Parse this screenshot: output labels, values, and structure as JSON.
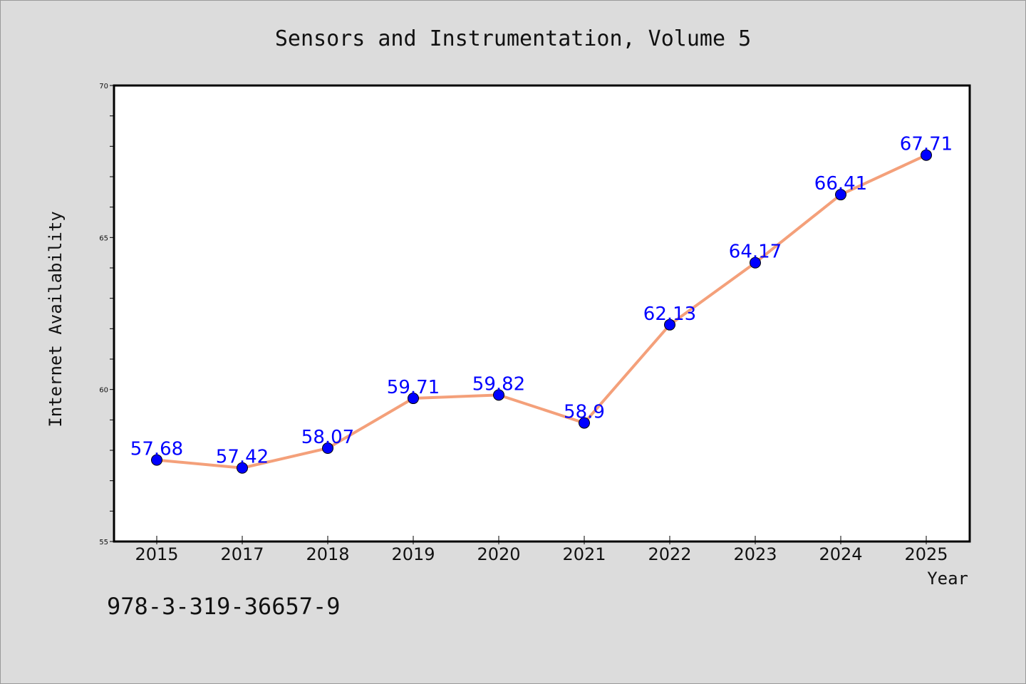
{
  "chart_data": {
    "type": "line",
    "title": "Sensors and Instrumentation, Volume 5",
    "xlabel": "Year",
    "ylabel": "Internet Availability",
    "categories": [
      "2015",
      "2017",
      "2018",
      "2019",
      "2020",
      "2021",
      "2022",
      "2023",
      "2024",
      "2025"
    ],
    "series": [
      {
        "values": [
          57.68,
          57.42,
          58.07,
          59.71,
          59.82,
          58.9,
          62.13,
          64.17,
          66.41,
          67.71
        ],
        "data_labels": [
          "57.68",
          "57.42",
          "58.07",
          "59.71",
          "59.82",
          "58.9",
          "62.13",
          "64.17",
          "66.41",
          "67.71"
        ],
        "line_color": "#f4a07a",
        "marker_color": "#0000ff"
      }
    ],
    "ylim": [
      55,
      70
    ],
    "yticks": [
      "55",
      "60",
      "65",
      "70"
    ],
    "grid": false,
    "legend": "none"
  },
  "footer": {
    "isbn": "978-3-319-36657-9"
  }
}
